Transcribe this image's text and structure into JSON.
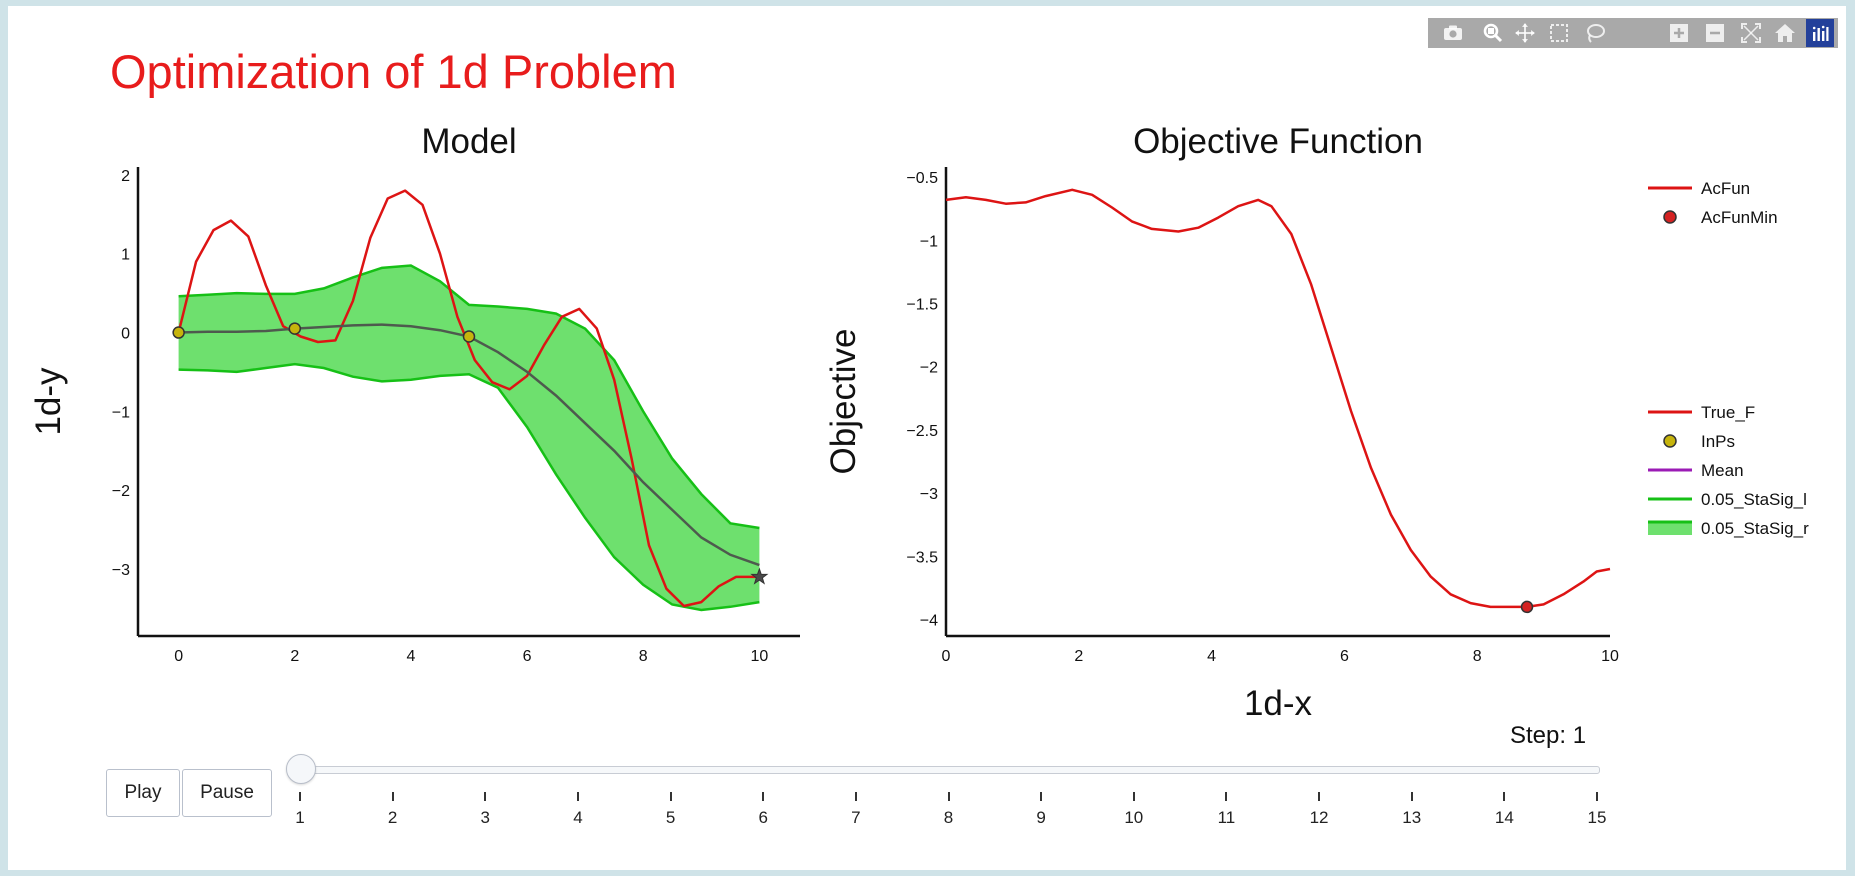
{
  "title": "Optimization of 1d Problem",
  "modebar": {
    "buttons": [
      {
        "name": "camera-icon"
      },
      {
        "name": "zoom-icon"
      },
      {
        "name": "pan-icon"
      },
      {
        "name": "box-select-icon"
      },
      {
        "name": "lasso-select-icon"
      },
      {
        "name": "zoom-in-icon"
      },
      {
        "name": "zoom-out-icon"
      },
      {
        "name": "autoscale-icon"
      },
      {
        "name": "home-icon"
      },
      {
        "name": "plotly-logo-icon"
      }
    ]
  },
  "controls": {
    "play_label": "Play",
    "pause_label": "Pause",
    "step_prefix": "Step: ",
    "step_value": "1",
    "slider_ticks": [
      "1",
      "2",
      "3",
      "4",
      "5",
      "6",
      "7",
      "8",
      "9",
      "10",
      "11",
      "12",
      "13",
      "14",
      "15"
    ],
    "slider_value": 1
  },
  "colors": {
    "title": "#e81c1c",
    "acfun": "#dd1414",
    "true_f": "#dd1414",
    "mean": "#4e5a4e",
    "band_line": "#16c016",
    "band_fill": "#6ee06e",
    "inps_fill": "#c6b40c",
    "acfunmin_fill": "#d42222"
  },
  "chart_data": [
    {
      "type": "line",
      "title": "Model",
      "xlabel": "",
      "ylabel": "1d-y",
      "xlim": [
        -0.7,
        10.7
      ],
      "ylim": [
        -3.85,
        2.1
      ],
      "xticks": [
        "0",
        "2",
        "4",
        "6",
        "8",
        "10"
      ],
      "yticks": [
        "2",
        "1",
        "0",
        "−1",
        "−2",
        "−3"
      ],
      "series": [
        {
          "name": "True_F",
          "x": [
            0,
            0.3,
            0.6,
            0.9,
            1.2,
            1.5,
            1.8,
            2.1,
            2.4,
            2.7,
            3.0,
            3.3,
            3.6,
            3.9,
            4.2,
            4.5,
            4.8,
            5.1,
            5.4,
            5.7,
            6.0,
            6.3,
            6.6,
            6.9,
            7.2,
            7.5,
            7.8,
            8.1,
            8.4,
            8.7,
            9.0,
            9.3,
            9.6,
            9.9,
            10.0
          ],
          "y": [
            0.0,
            0.9,
            1.3,
            1.42,
            1.22,
            0.6,
            0.08,
            -0.05,
            -0.12,
            -0.1,
            0.4,
            1.2,
            1.7,
            1.8,
            1.62,
            1.0,
            0.2,
            -0.35,
            -0.63,
            -0.72,
            -0.55,
            -0.15,
            0.2,
            0.3,
            0.05,
            -0.6,
            -1.6,
            -2.7,
            -3.25,
            -3.47,
            -3.42,
            -3.22,
            -3.1,
            -3.1,
            -3.1
          ]
        },
        {
          "name": "Mean",
          "x": [
            0,
            0.5,
            1,
            1.5,
            2,
            2.5,
            3,
            3.5,
            4,
            4.5,
            5,
            5.5,
            6,
            6.5,
            7,
            7.5,
            8,
            8.5,
            9,
            9.5,
            10
          ],
          "y": [
            0.0,
            0.01,
            0.01,
            0.02,
            0.05,
            0.07,
            0.09,
            0.1,
            0.08,
            0.03,
            -0.05,
            -0.25,
            -0.5,
            -0.8,
            -1.15,
            -1.5,
            -1.9,
            -2.25,
            -2.6,
            -2.82,
            -2.95
          ]
        },
        {
          "name": "0.05_StaSig_l",
          "x": [
            0,
            0.5,
            1,
            1.5,
            2,
            2.5,
            3,
            3.5,
            4,
            4.5,
            5,
            5.5,
            6,
            6.5,
            7,
            7.5,
            8,
            8.5,
            9,
            9.5,
            10
          ],
          "y": [
            -0.47,
            -0.48,
            -0.5,
            -0.45,
            -0.4,
            -0.45,
            -0.56,
            -0.62,
            -0.6,
            -0.55,
            -0.53,
            -0.7,
            -1.2,
            -1.8,
            -2.35,
            -2.85,
            -3.2,
            -3.45,
            -3.52,
            -3.48,
            -3.42
          ]
        },
        {
          "name": "0.05_StaSig_r",
          "x": [
            0,
            0.5,
            1,
            1.5,
            2,
            2.5,
            3,
            3.5,
            4,
            4.5,
            5,
            5.5,
            6,
            6.5,
            7,
            7.5,
            8,
            8.5,
            9,
            9.5,
            10
          ],
          "y": [
            0.46,
            0.48,
            0.5,
            0.49,
            0.49,
            0.56,
            0.7,
            0.82,
            0.85,
            0.65,
            0.35,
            0.33,
            0.3,
            0.24,
            0.05,
            -0.35,
            -1.0,
            -1.6,
            -2.05,
            -2.42,
            -2.48
          ]
        },
        {
          "name": "InPs",
          "x": [
            0,
            2,
            5
          ],
          "y": [
            0.0,
            0.05,
            -0.05
          ]
        },
        {
          "name": "last-point",
          "x": [
            10
          ],
          "y": [
            -3.1
          ]
        }
      ]
    },
    {
      "type": "line",
      "title": "Objective Function",
      "xlabel": "1d-x",
      "ylabel": "Objective",
      "xlim": [
        0,
        10
      ],
      "ylim": [
        -4.13,
        -0.42
      ],
      "xticks": [
        "0",
        "2",
        "4",
        "6",
        "8",
        "10"
      ],
      "yticks": [
        "−0.5",
        "−1",
        "−1.5",
        "−2",
        "−2.5",
        "−3",
        "−3.5",
        "−4"
      ],
      "series": [
        {
          "name": "AcFun",
          "x": [
            0,
            0.3,
            0.6,
            0.9,
            1.2,
            1.5,
            1.9,
            2.2,
            2.5,
            2.8,
            3.1,
            3.5,
            3.8,
            4.1,
            4.4,
            4.7,
            4.9,
            5.2,
            5.5,
            5.8,
            6.1,
            6.4,
            6.7,
            7.0,
            7.3,
            7.6,
            7.9,
            8.2,
            8.5,
            8.75,
            9.0,
            9.3,
            9.6,
            9.8,
            10.0
          ],
          "y": [
            -0.68,
            -0.66,
            -0.68,
            -0.71,
            -0.7,
            -0.65,
            -0.6,
            -0.64,
            -0.74,
            -0.85,
            -0.91,
            -0.93,
            -0.9,
            -0.82,
            -0.73,
            -0.68,
            -0.73,
            -0.95,
            -1.35,
            -1.85,
            -2.35,
            -2.8,
            -3.17,
            -3.45,
            -3.66,
            -3.8,
            -3.87,
            -3.9,
            -3.9,
            -3.9,
            -3.88,
            -3.8,
            -3.7,
            -3.62,
            -3.6
          ]
        },
        {
          "name": "AcFunMin",
          "x": [
            8.75
          ],
          "y": [
            -3.9
          ]
        }
      ]
    }
  ],
  "legend": {
    "group1": [
      {
        "name": "AcFun",
        "symbol": "line",
        "color": "#dd1414"
      },
      {
        "name": "AcFunMin",
        "symbol": "marker",
        "color": "#d42222"
      }
    ],
    "group2": [
      {
        "name": "True_F",
        "symbol": "line",
        "color": "#dd1414"
      },
      {
        "name": "InPs",
        "symbol": "marker",
        "color": "#c6b40c"
      },
      {
        "name": "Mean",
        "symbol": "line",
        "color": "#9b1bb5"
      },
      {
        "name": "0.05_StaSig_l",
        "symbol": "line",
        "color": "#16c016"
      },
      {
        "name": "0.05_StaSig_r",
        "symbol": "band",
        "color": "#16c016"
      }
    ]
  }
}
